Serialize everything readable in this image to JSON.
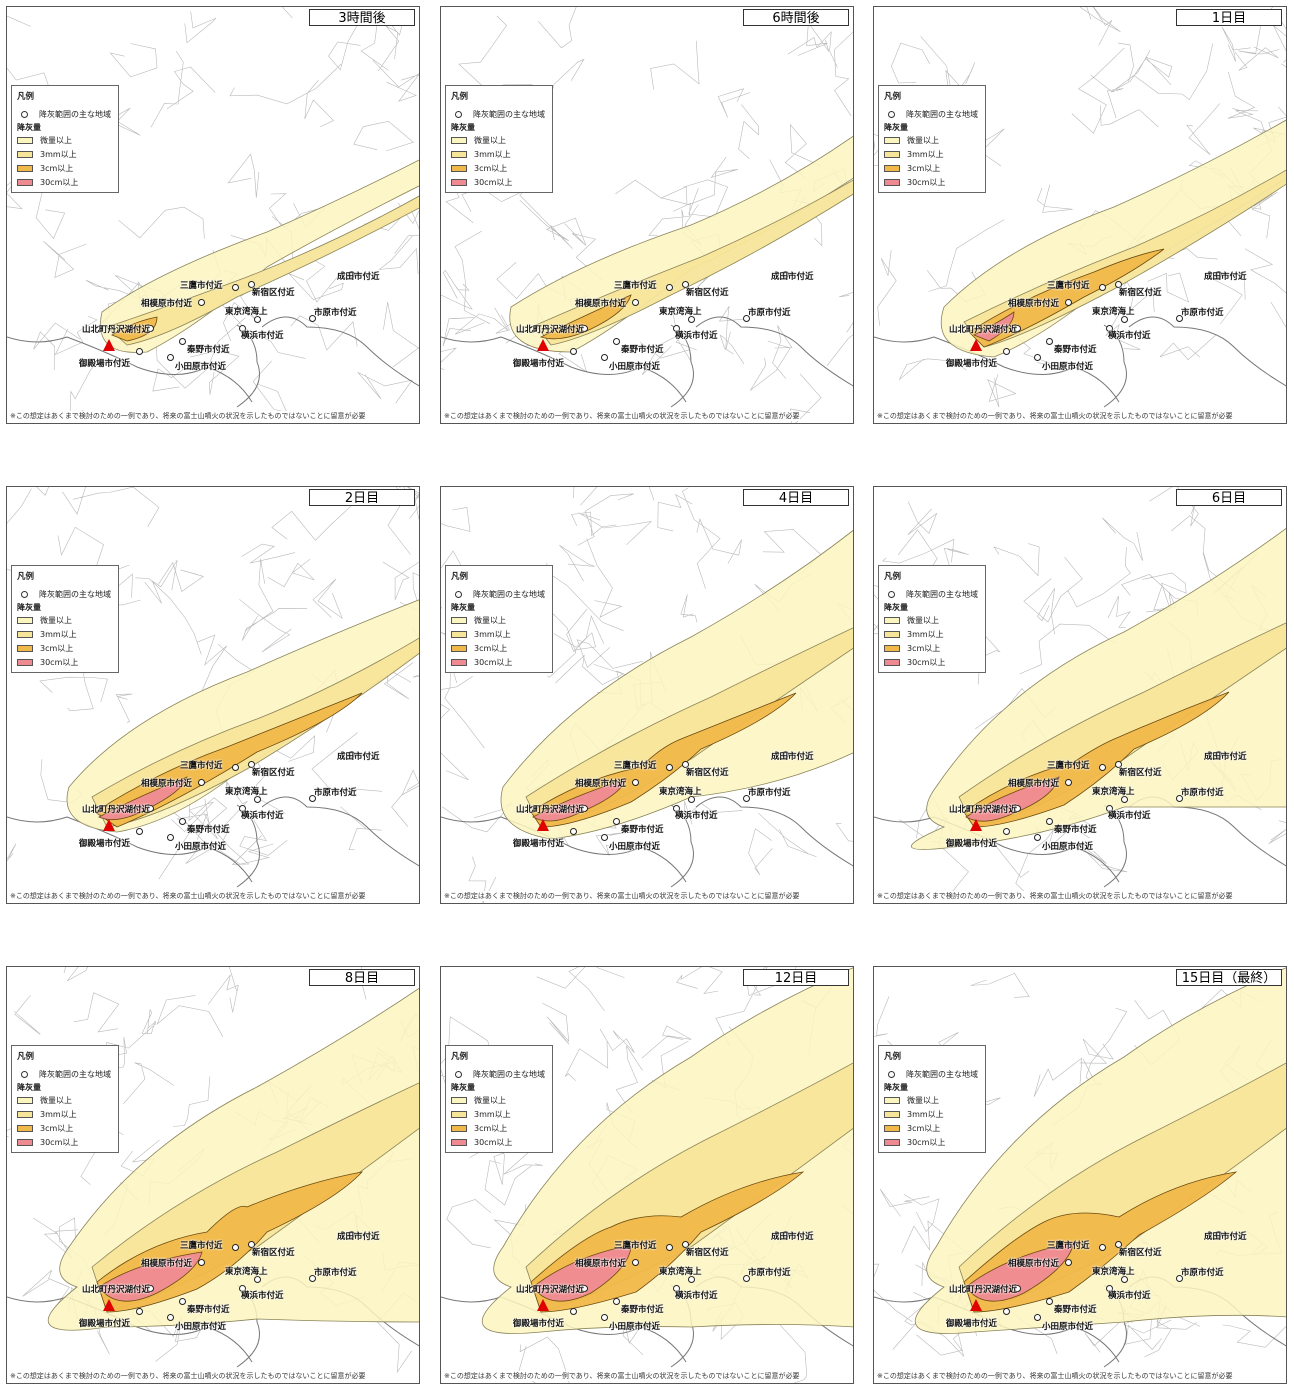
{
  "legend": {
    "title": "凡例",
    "circle_label": "降灰範囲の主な地域",
    "subtitle": "降灰量",
    "items": [
      {
        "label": "微量以上",
        "color": "#fbf5c0"
      },
      {
        "label": "3mm以上",
        "color": "#f7e59a"
      },
      {
        "label": "3cm以上",
        "color": "#f1b84a"
      },
      {
        "label": "30cm以上",
        "color": "#ef8a93"
      }
    ]
  },
  "footnote": "※この想定はあくまで検討のための一例であり、将来の富士山噴火の状況を示したものではないことに留意が必要",
  "places": {
    "yamakita": "山北町丹沢湖付近",
    "gotemba": "御殿場市付近",
    "odawara": "小田原市付近",
    "hadano": "秦野市付近",
    "sagamihara": "相模原市付近",
    "mitaka": "三鷹市付近",
    "shinjuku": "新宿区付近",
    "tokyobay": "東京湾海上",
    "yokohama": "横浜市付近",
    "ichihara": "市原市付近",
    "narita": "成田市付近"
  },
  "panels": [
    {
      "label": "3時間後",
      "stage": 0
    },
    {
      "label": "6時間後",
      "stage": 1
    },
    {
      "label": "1日目",
      "stage": 2
    },
    {
      "label": "2日目",
      "stage": 3
    },
    {
      "label": "4日目",
      "stage": 4
    },
    {
      "label": "6日目",
      "stage": 5
    },
    {
      "label": "8日目",
      "stage": 6
    },
    {
      "label": "12日目",
      "stage": 7
    },
    {
      "label": "15日目（最終）",
      "stage": 8
    }
  ]
}
